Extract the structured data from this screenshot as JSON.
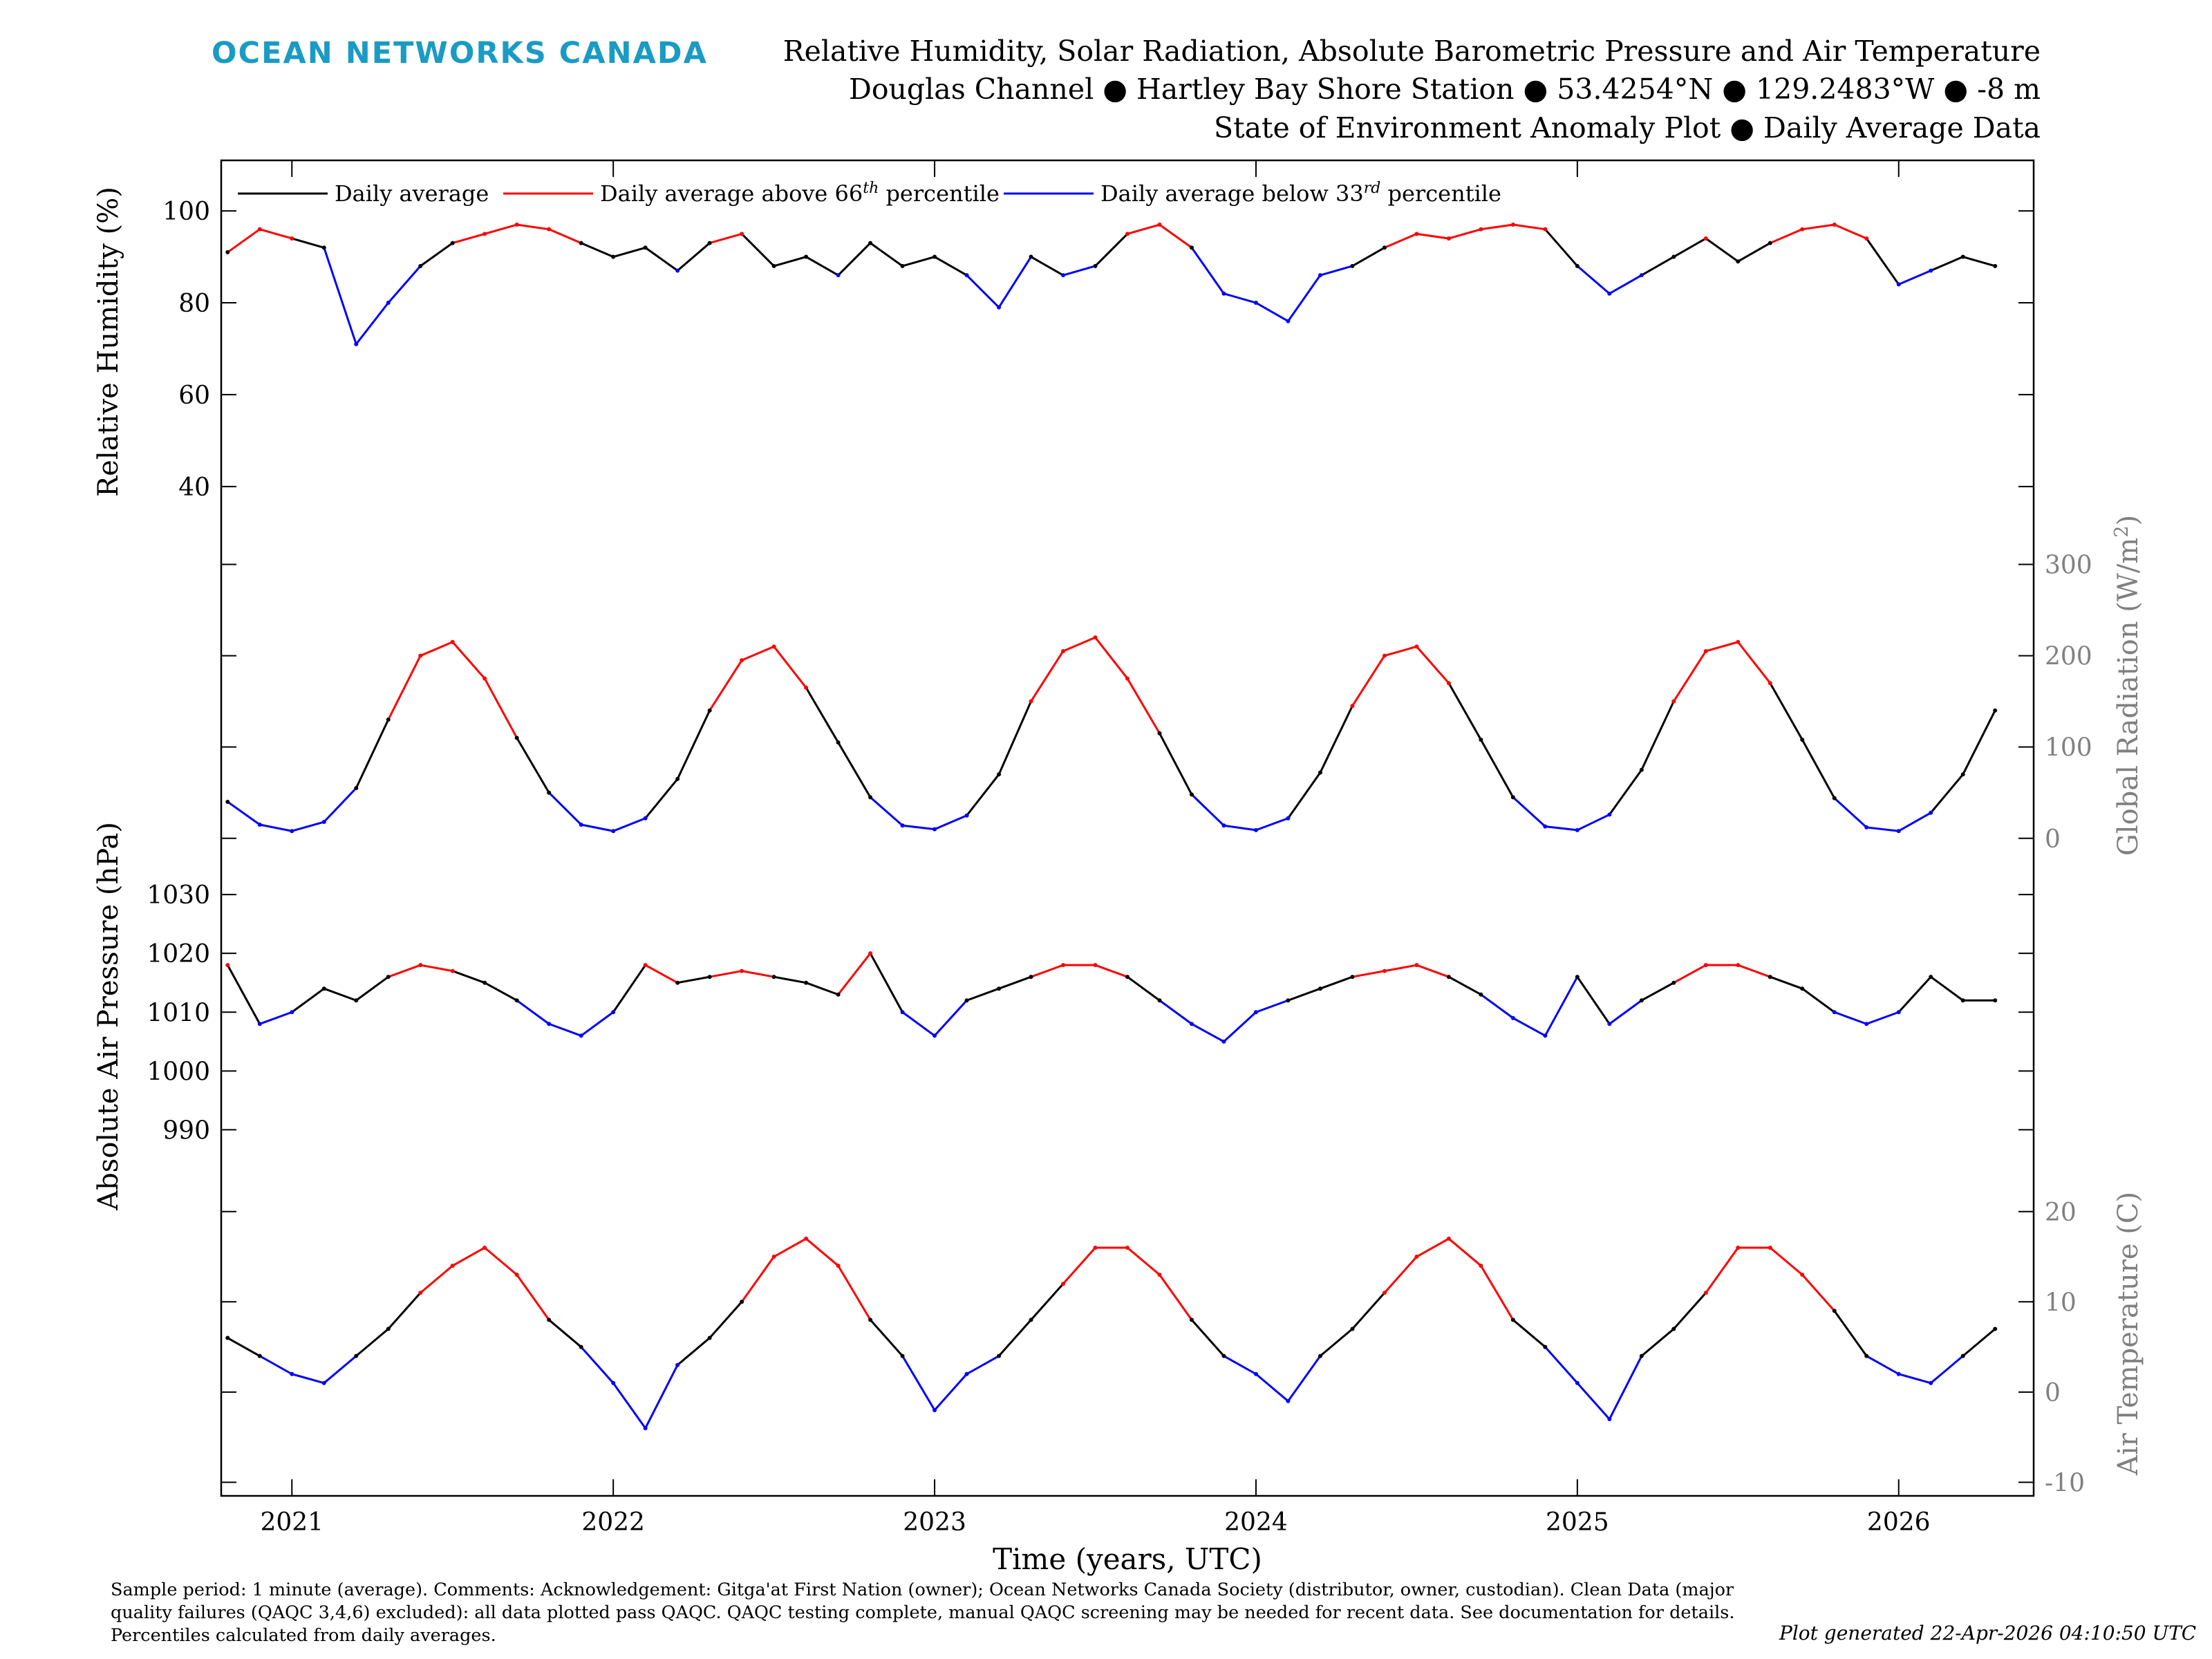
{
  "header": {
    "logo": "OCEAN NETWORKS CANADA",
    "title_line1": "Relative Humidity, Solar Radiation, Absolute Barometric Pressure and Air Temperature",
    "title_line2": "Douglas Channel ● Hartley Bay Shore Station ● 53.4254°N ● 129.2483°W ● -8 m",
    "title_line3": "State of Environment Anomaly Plot ● Daily Average Data"
  },
  "legend": {
    "black": "Daily average",
    "red_prefix": "Daily average above 66",
    "red_sup": "th",
    "red_suffix": " percentile",
    "blue_prefix": "Daily average below 33",
    "blue_sup": "rd",
    "blue_suffix": " percentile"
  },
  "colors": {
    "normal": "#000000",
    "above": "#ff0000",
    "below": "#0000ff",
    "right_axis": "#808080",
    "logo": "#1a9bc4"
  },
  "chart_data": [
    {
      "type": "line",
      "panel": "humidity",
      "ylabel": "Relative Humidity (%)",
      "axis_side": "left",
      "ylim": [
        32,
        111
      ],
      "yticks": [
        40,
        60,
        80,
        100
      ],
      "x": [
        2020.8,
        2020.9,
        2021.0,
        2021.1,
        2021.2,
        2021.3,
        2021.4,
        2021.5,
        2021.6,
        2021.7,
        2021.8,
        2021.9,
        2022.0,
        2022.1,
        2022.2,
        2022.3,
        2022.4,
        2022.5,
        2022.6,
        2022.7,
        2022.8,
        2022.9,
        2023.0,
        2023.1,
        2023.2,
        2023.3,
        2023.4,
        2023.5,
        2023.6,
        2023.7,
        2023.8,
        2023.9,
        2024.0,
        2024.1,
        2024.2,
        2024.3,
        2024.4,
        2024.5,
        2024.6,
        2024.7,
        2024.8,
        2024.9,
        2025.0,
        2025.1,
        2025.2,
        2025.3,
        2025.4,
        2025.5,
        2025.6,
        2025.7,
        2025.8,
        2025.9,
        2026.0,
        2026.1,
        2026.2,
        2026.3
      ],
      "values": [
        91,
        96,
        94,
        92,
        71,
        80,
        88,
        93,
        95,
        97,
        96,
        93,
        90,
        92,
        87,
        93,
        95,
        88,
        90,
        86,
        93,
        88,
        90,
        86,
        79,
        90,
        86,
        88,
        95,
        97,
        92,
        82,
        80,
        76,
        86,
        88,
        92,
        95,
        94,
        96,
        97,
        96,
        88,
        82,
        86,
        90,
        94,
        89,
        93,
        96,
        97,
        94,
        84,
        87,
        90,
        88
      ]
    },
    {
      "type": "line",
      "panel": "radiation",
      "ylabel": "Global Radiation (W/m2)",
      "ylabel_main": "Global Radiation (W/m",
      "ylabel_sup": "2",
      "ylabel_end": ")",
      "axis_side": "right",
      "ylim": [
        -10,
        345
      ],
      "yticks": [
        0,
        100,
        200,
        300
      ],
      "x": [
        2020.8,
        2020.9,
        2021.0,
        2021.1,
        2021.2,
        2021.3,
        2021.4,
        2021.5,
        2021.6,
        2021.7,
        2021.8,
        2021.9,
        2022.0,
        2022.1,
        2022.2,
        2022.3,
        2022.4,
        2022.5,
        2022.6,
        2022.7,
        2022.8,
        2022.9,
        2023.0,
        2023.1,
        2023.2,
        2023.3,
        2023.4,
        2023.5,
        2023.6,
        2023.7,
        2023.8,
        2023.9,
        2024.0,
        2024.1,
        2024.2,
        2024.3,
        2024.4,
        2024.5,
        2024.6,
        2024.7,
        2024.8,
        2024.9,
        2025.0,
        2025.1,
        2025.2,
        2025.3,
        2025.4,
        2025.5,
        2025.6,
        2025.7,
        2025.8,
        2025.9,
        2026.0,
        2026.1,
        2026.2,
        2026.3
      ],
      "values": [
        40,
        15,
        8,
        18,
        55,
        130,
        200,
        215,
        175,
        110,
        50,
        15,
        8,
        22,
        65,
        140,
        195,
        210,
        165,
        105,
        45,
        14,
        10,
        25,
        70,
        150,
        205,
        220,
        175,
        115,
        48,
        14,
        9,
        22,
        72,
        145,
        200,
        210,
        170,
        108,
        45,
        13,
        9,
        26,
        75,
        150,
        205,
        215,
        170,
        108,
        44,
        12,
        8,
        28,
        70,
        140
      ]
    },
    {
      "type": "line",
      "panel": "pressure",
      "ylabel": "Absolute Air Pressure (hPa)",
      "axis_side": "left",
      "ylim": [
        983,
        1038
      ],
      "yticks": [
        990,
        1000,
        1010,
        1020,
        1030
      ],
      "x": [
        2020.8,
        2020.9,
        2021.0,
        2021.1,
        2021.2,
        2021.3,
        2021.4,
        2021.5,
        2021.6,
        2021.7,
        2021.8,
        2021.9,
        2022.0,
        2022.1,
        2022.2,
        2022.3,
        2022.4,
        2022.5,
        2022.6,
        2022.7,
        2022.8,
        2022.9,
        2023.0,
        2023.1,
        2023.2,
        2023.3,
        2023.4,
        2023.5,
        2023.6,
        2023.7,
        2023.8,
        2023.9,
        2024.0,
        2024.1,
        2024.2,
        2024.3,
        2024.4,
        2024.5,
        2024.6,
        2024.7,
        2024.8,
        2024.9,
        2025.0,
        2025.1,
        2025.2,
        2025.3,
        2025.4,
        2025.5,
        2025.6,
        2025.7,
        2025.8,
        2025.9,
        2026.0,
        2026.1,
        2026.2,
        2026.3
      ],
      "values": [
        1018,
        1008,
        1010,
        1014,
        1012,
        1016,
        1018,
        1017,
        1015,
        1012,
        1008,
        1006,
        1010,
        1018,
        1015,
        1016,
        1017,
        1016,
        1015,
        1013,
        1020,
        1010,
        1006,
        1012,
        1014,
        1016,
        1018,
        1018,
        1016,
        1012,
        1008,
        1005,
        1010,
        1012,
        1014,
        1016,
        1017,
        1018,
        1016,
        1013,
        1009,
        1006,
        1016,
        1008,
        1012,
        1015,
        1018,
        1018,
        1016,
        1014,
        1010,
        1008,
        1010,
        1016,
        1012,
        1012
      ]
    },
    {
      "type": "line",
      "panel": "temperature",
      "ylabel": "Air Temperature (C)",
      "axis_side": "right",
      "ylim": [
        -11.5,
        24.5
      ],
      "yticks": [
        -10,
        0,
        10,
        20
      ],
      "x": [
        2020.8,
        2020.9,
        2021.0,
        2021.1,
        2021.2,
        2021.3,
        2021.4,
        2021.5,
        2021.6,
        2021.7,
        2021.8,
        2021.9,
        2022.0,
        2022.1,
        2022.2,
        2022.3,
        2022.4,
        2022.5,
        2022.6,
        2022.7,
        2022.8,
        2022.9,
        2023.0,
        2023.1,
        2023.2,
        2023.3,
        2023.4,
        2023.5,
        2023.6,
        2023.7,
        2023.8,
        2023.9,
        2024.0,
        2024.1,
        2024.2,
        2024.3,
        2024.4,
        2024.5,
        2024.6,
        2024.7,
        2024.8,
        2024.9,
        2025.0,
        2025.1,
        2025.2,
        2025.3,
        2025.4,
        2025.5,
        2025.6,
        2025.7,
        2025.8,
        2025.9,
        2026.0,
        2026.1,
        2026.2,
        2026.3
      ],
      "values": [
        6,
        4,
        2,
        1,
        4,
        7,
        11,
        14,
        16,
        13,
        8,
        5,
        1,
        -4,
        3,
        6,
        10,
        15,
        17,
        14,
        8,
        4,
        -2,
        2,
        4,
        8,
        12,
        16,
        16,
        13,
        8,
        4,
        2,
        -1,
        4,
        7,
        11,
        15,
        17,
        14,
        8,
        5,
        1,
        -3,
        4,
        7,
        11,
        16,
        16,
        13,
        9,
        4,
        2,
        1,
        4,
        7
      ]
    }
  ],
  "xaxis": {
    "label": "Time (years, UTC)",
    "xlim": [
      2020.78,
      2026.42
    ],
    "ticks": [
      2021,
      2022,
      2023,
      2024,
      2025,
      2026
    ],
    "tick_labels": [
      "2021",
      "2022",
      "2023",
      "2024",
      "2025",
      "2026"
    ]
  },
  "footer": {
    "text": "Sample period: 1 minute (average). Comments: Acknowledgement: Gitga'at First Nation (owner); Ocean Networks Canada Society (distributor, owner, custodian). Clean Data (major quality failures (QAQC 3,4,6) excluded): all data plotted pass QAQC. QAQC testing complete, manual QAQC screening may be needed for recent data. See documentation for details. Percentiles calculated from daily averages.",
    "generated": "Plot generated 22-Apr-2026 04:10:50 UTC"
  }
}
